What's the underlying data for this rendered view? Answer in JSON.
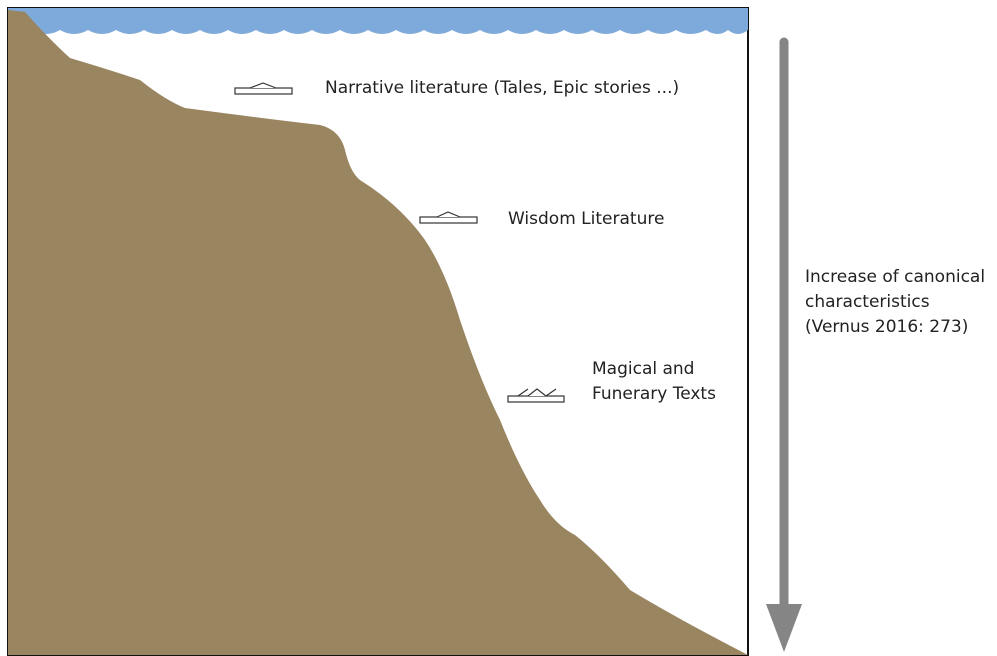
{
  "labels": [
    {
      "lines": [
        "Narrative literature (Tales, Epic stories ...)"
      ]
    },
    {
      "lines": [
        "Wisdom Literature"
      ]
    },
    {
      "lines": [
        "Magical and",
        "Funerary Texts"
      ]
    }
  ],
  "arrow": {
    "lines": [
      "Increase of canonical",
      "characteristics",
      "(Vernus 2016: 273)"
    ]
  }
}
